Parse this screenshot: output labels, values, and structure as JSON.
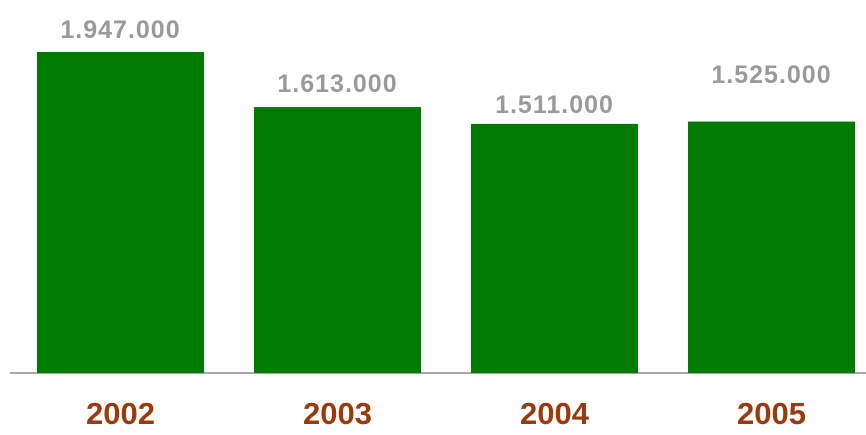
{
  "chart_data": {
    "type": "bar",
    "categories": [
      "2002",
      "2003",
      "2004",
      "2005"
    ],
    "values": [
      1947000,
      1613000,
      1511000,
      1525000
    ],
    "value_labels": [
      "1.947.000",
      "1.613.000",
      "1.511.000",
      "1.525.000"
    ],
    "title": "",
    "xlabel": "",
    "ylabel": "",
    "ylim": [
      0,
      2000000
    ],
    "grid": false,
    "legend": "none",
    "colors": {
      "bar": "#007a00",
      "value_label": "#9a9a9a",
      "category_label": "#9b3a0c",
      "axis": "#8a8a8a"
    }
  }
}
